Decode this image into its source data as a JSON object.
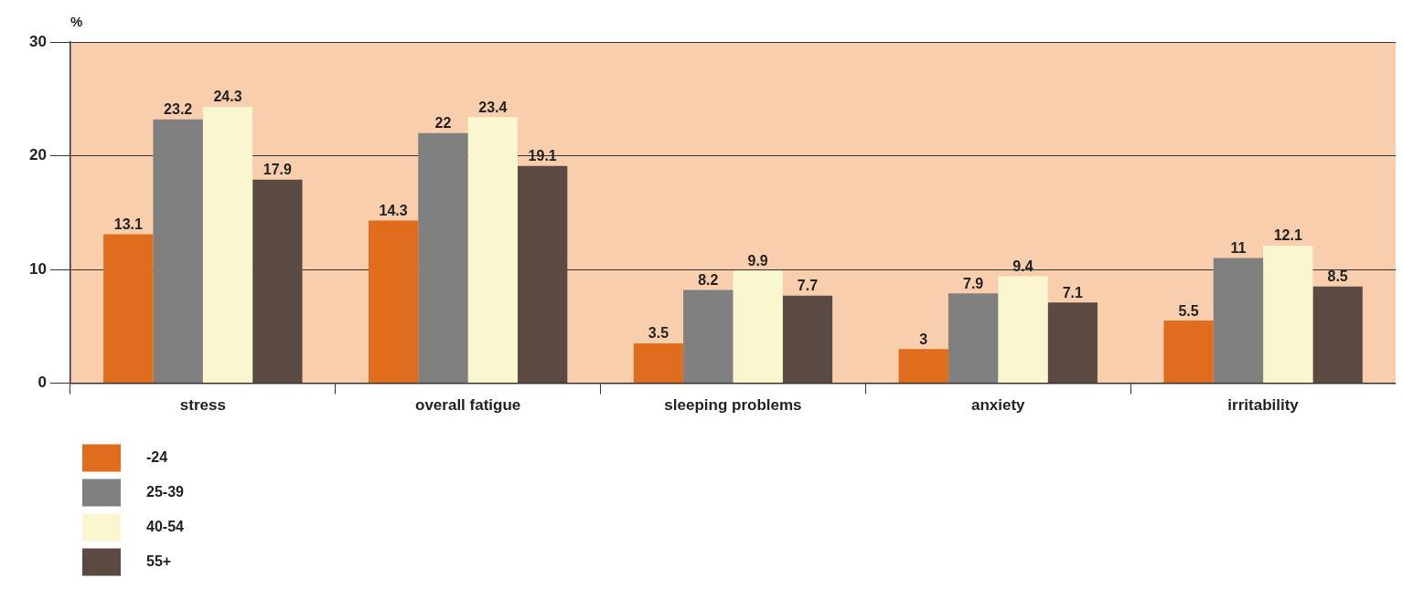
{
  "chart_data": {
    "type": "bar",
    "ylabel": "%",
    "categories": [
      "stress",
      "overall fatigue",
      "sleeping problems",
      "anxiety",
      "irritability"
    ],
    "series": [
      {
        "name": "-24",
        "color": "#e06c1e",
        "values": [
          13.1,
          14.3,
          3.5,
          3,
          5.5
        ]
      },
      {
        "name": "25-39",
        "color": "#808080",
        "values": [
          23.2,
          22,
          8.2,
          7.9,
          11
        ]
      },
      {
        "name": "40-54",
        "color": "#faf6d0",
        "values": [
          24.3,
          23.4,
          9.9,
          9.4,
          12.1
        ]
      },
      {
        "name": "55+",
        "color": "#5a4a42",
        "values": [
          17.9,
          19.1,
          7.7,
          7.1,
          8.5
        ]
      }
    ],
    "ylim": [
      0,
      30
    ],
    "yticks": [
      0,
      10,
      20,
      30
    ],
    "grid": "y",
    "legend": "bottom left",
    "data_labels": true
  }
}
